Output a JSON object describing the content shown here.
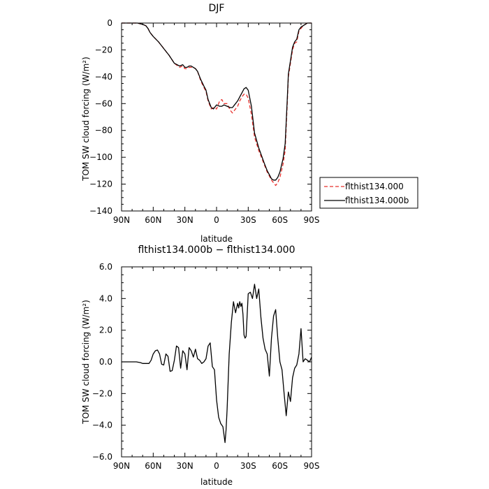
{
  "chart_data": [
    {
      "type": "line",
      "title": "DJF",
      "xlabel": "latitude",
      "ylabel": "TOM SW cloud forcing (W/m²)",
      "xlim": [
        90,
        -90
      ],
      "ylim": [
        -140,
        0
      ],
      "x_ticks": [
        90,
        60,
        30,
        0,
        -30,
        -60,
        -90
      ],
      "x_tick_labels": [
        "90N",
        "60N",
        "30N",
        "0",
        "30S",
        "60S",
        "90S"
      ],
      "y_ticks": [
        0,
        -20,
        -40,
        -60,
        -80,
        -100,
        -120,
        -140
      ],
      "y_tick_labels": [
        "0",
        "−20",
        "−40",
        "−60",
        "−80",
        "−100",
        "−120",
        "−140"
      ],
      "grid": false,
      "legend_position": "right",
      "series": [
        {
          "name": "flthist134.000",
          "color": "#e8302c",
          "dash": "dashed",
          "x": [
            90,
            80,
            75,
            70,
            67,
            65,
            63,
            60,
            55,
            50,
            45,
            40,
            35,
            32,
            30,
            28,
            26,
            24,
            22,
            20,
            18,
            15,
            12,
            10,
            8,
            5,
            3,
            0,
            -3,
            -5,
            -7,
            -10,
            -13,
            -15,
            -17,
            -20,
            -22,
            -24,
            -26,
            -28,
            -30,
            -33,
            -36,
            -40,
            -45,
            -48,
            -50,
            -52,
            -54,
            -56,
            -58,
            -60,
            -63,
            -65,
            -67,
            -68,
            -70,
            -72,
            -74,
            -76,
            -78,
            -80,
            -82,
            -84,
            -86,
            -88,
            -90
          ],
          "y": [
            0,
            0,
            0,
            -1,
            -2,
            -4,
            -7,
            -10,
            -14,
            -19,
            -24,
            -30,
            -33,
            -32,
            -34,
            -34,
            -33,
            -33,
            -33,
            -34,
            -36,
            -43,
            -48,
            -51,
            -58,
            -64,
            -63,
            -64,
            -58,
            -57,
            -60,
            -60,
            -65,
            -67,
            -65,
            -62,
            -58,
            -55,
            -53,
            -53,
            -56,
            -68,
            -85,
            -95,
            -105,
            -111,
            -114,
            -117,
            -119,
            -121,
            -119,
            -115,
            -105,
            -95,
            -60,
            -40,
            -30,
            -20,
            -15,
            -14,
            -6,
            -4,
            -2,
            -1,
            0,
            0,
            0
          ]
        },
        {
          "name": "flthist134.000b",
          "color": "#000000",
          "dash": "solid",
          "x": [
            90,
            80,
            75,
            70,
            67,
            65,
            63,
            60,
            55,
            50,
            45,
            40,
            35,
            32,
            30,
            28,
            26,
            24,
            22,
            20,
            18,
            15,
            12,
            10,
            8,
            5,
            3,
            0,
            -3,
            -5,
            -7,
            -10,
            -13,
            -15,
            -17,
            -20,
            -22,
            -24,
            -26,
            -28,
            -30,
            -33,
            -36,
            -40,
            -45,
            -48,
            -50,
            -52,
            -54,
            -56,
            -58,
            -60,
            -63,
            -65,
            -67,
            -68,
            -70,
            -72,
            -74,
            -76,
            -78,
            -80,
            -82,
            -84,
            -86,
            -88,
            -90
          ],
          "y": [
            0,
            0,
            0,
            -1,
            -2,
            -4,
            -7,
            -10,
            -14,
            -19,
            -24,
            -30,
            -32,
            -31,
            -33,
            -33,
            -32,
            -32,
            -33,
            -34,
            -36,
            -42,
            -47,
            -50,
            -57,
            -63,
            -64,
            -61,
            -62,
            -62,
            -61,
            -62,
            -63,
            -63,
            -61,
            -58,
            -55,
            -52,
            -49,
            -48,
            -50,
            -62,
            -82,
            -93,
            -104,
            -110,
            -113,
            -116,
            -117,
            -117,
            -115,
            -111,
            -101,
            -90,
            -57,
            -38,
            -28,
            -18,
            -14,
            -12,
            -5,
            -3,
            -2,
            -1,
            0,
            0,
            0
          ]
        }
      ]
    },
    {
      "type": "line",
      "title": "flthist134.000b − flthist134.000",
      "xlabel": "latitude",
      "ylabel": "TOM SW cloud forcing (W/m²)",
      "xlim": [
        90,
        -90
      ],
      "ylim": [
        -6,
        6
      ],
      "x_ticks": [
        90,
        60,
        30,
        0,
        -30,
        -60,
        -90
      ],
      "x_tick_labels": [
        "90N",
        "60N",
        "30N",
        "0",
        "30S",
        "60S",
        "90S"
      ],
      "y_ticks": [
        6,
        4,
        2,
        0,
        -2,
        -4,
        -6
      ],
      "y_tick_labels": [
        "6.0",
        "4.0",
        "2.0",
        "0.0",
        "−2.0",
        "−4.0",
        "−6.0"
      ],
      "grid": false,
      "series": [
        {
          "name": "",
          "color": "#000000",
          "dash": "solid",
          "x": [
            90,
            80,
            76,
            72,
            70,
            66,
            64,
            62,
            60,
            58,
            56,
            54,
            52,
            50,
            48,
            46,
            44,
            42,
            40,
            38,
            36,
            34,
            32,
            30,
            28,
            26,
            24,
            22,
            20,
            18,
            16,
            14,
            12,
            10,
            8,
            6,
            4,
            2,
            0,
            -2,
            -4,
            -6,
            -8,
            -9,
            -10,
            -12,
            -14,
            -16,
            -18,
            -20,
            -21,
            -22,
            -23,
            -24,
            -25,
            -26,
            -27,
            -28,
            -30,
            -32,
            -34,
            -36,
            -38,
            -40,
            -42,
            -44,
            -46,
            -48,
            -50,
            -52,
            -54,
            -56,
            -58,
            -60,
            -62,
            -64,
            -66,
            -68,
            -70,
            -72,
            -74,
            -76,
            -78,
            -80,
            -82,
            -84,
            -86,
            -88,
            -90
          ],
          "y": [
            0,
            0,
            0,
            -0.05,
            -0.1,
            -0.1,
            -0.1,
            0.1,
            0.5,
            0.7,
            0.75,
            0.5,
            -0.15,
            -0.2,
            0.5,
            0.35,
            -0.6,
            -0.55,
            0.1,
            1.0,
            0.9,
            -0.4,
            0.7,
            0.5,
            -0.5,
            0.9,
            0.7,
            0.3,
            0.8,
            0.2,
            0.1,
            -0.1,
            0.0,
            0.2,
            1.0,
            1.2,
            -0.3,
            -0.5,
            -2.4,
            -3.5,
            -3.9,
            -4.1,
            -5.1,
            -4.3,
            -3.0,
            0.5,
            2.5,
            3.8,
            3.1,
            3.7,
            3.4,
            3.8,
            3.5,
            3.7,
            3.0,
            1.7,
            1.5,
            1.6,
            4.3,
            4.4,
            4.0,
            4.9,
            4.0,
            4.6,
            2.8,
            1.5,
            0.8,
            0.5,
            -0.9,
            1.5,
            2.9,
            3.3,
            1.5,
            0.0,
            -0.5,
            -2.0,
            -3.4,
            -1.9,
            -2.5,
            -1.0,
            -0.4,
            -0.2,
            0.5,
            2.1,
            0.0,
            0.2,
            0.1,
            0.0,
            0.3
          ]
        }
      ]
    }
  ]
}
